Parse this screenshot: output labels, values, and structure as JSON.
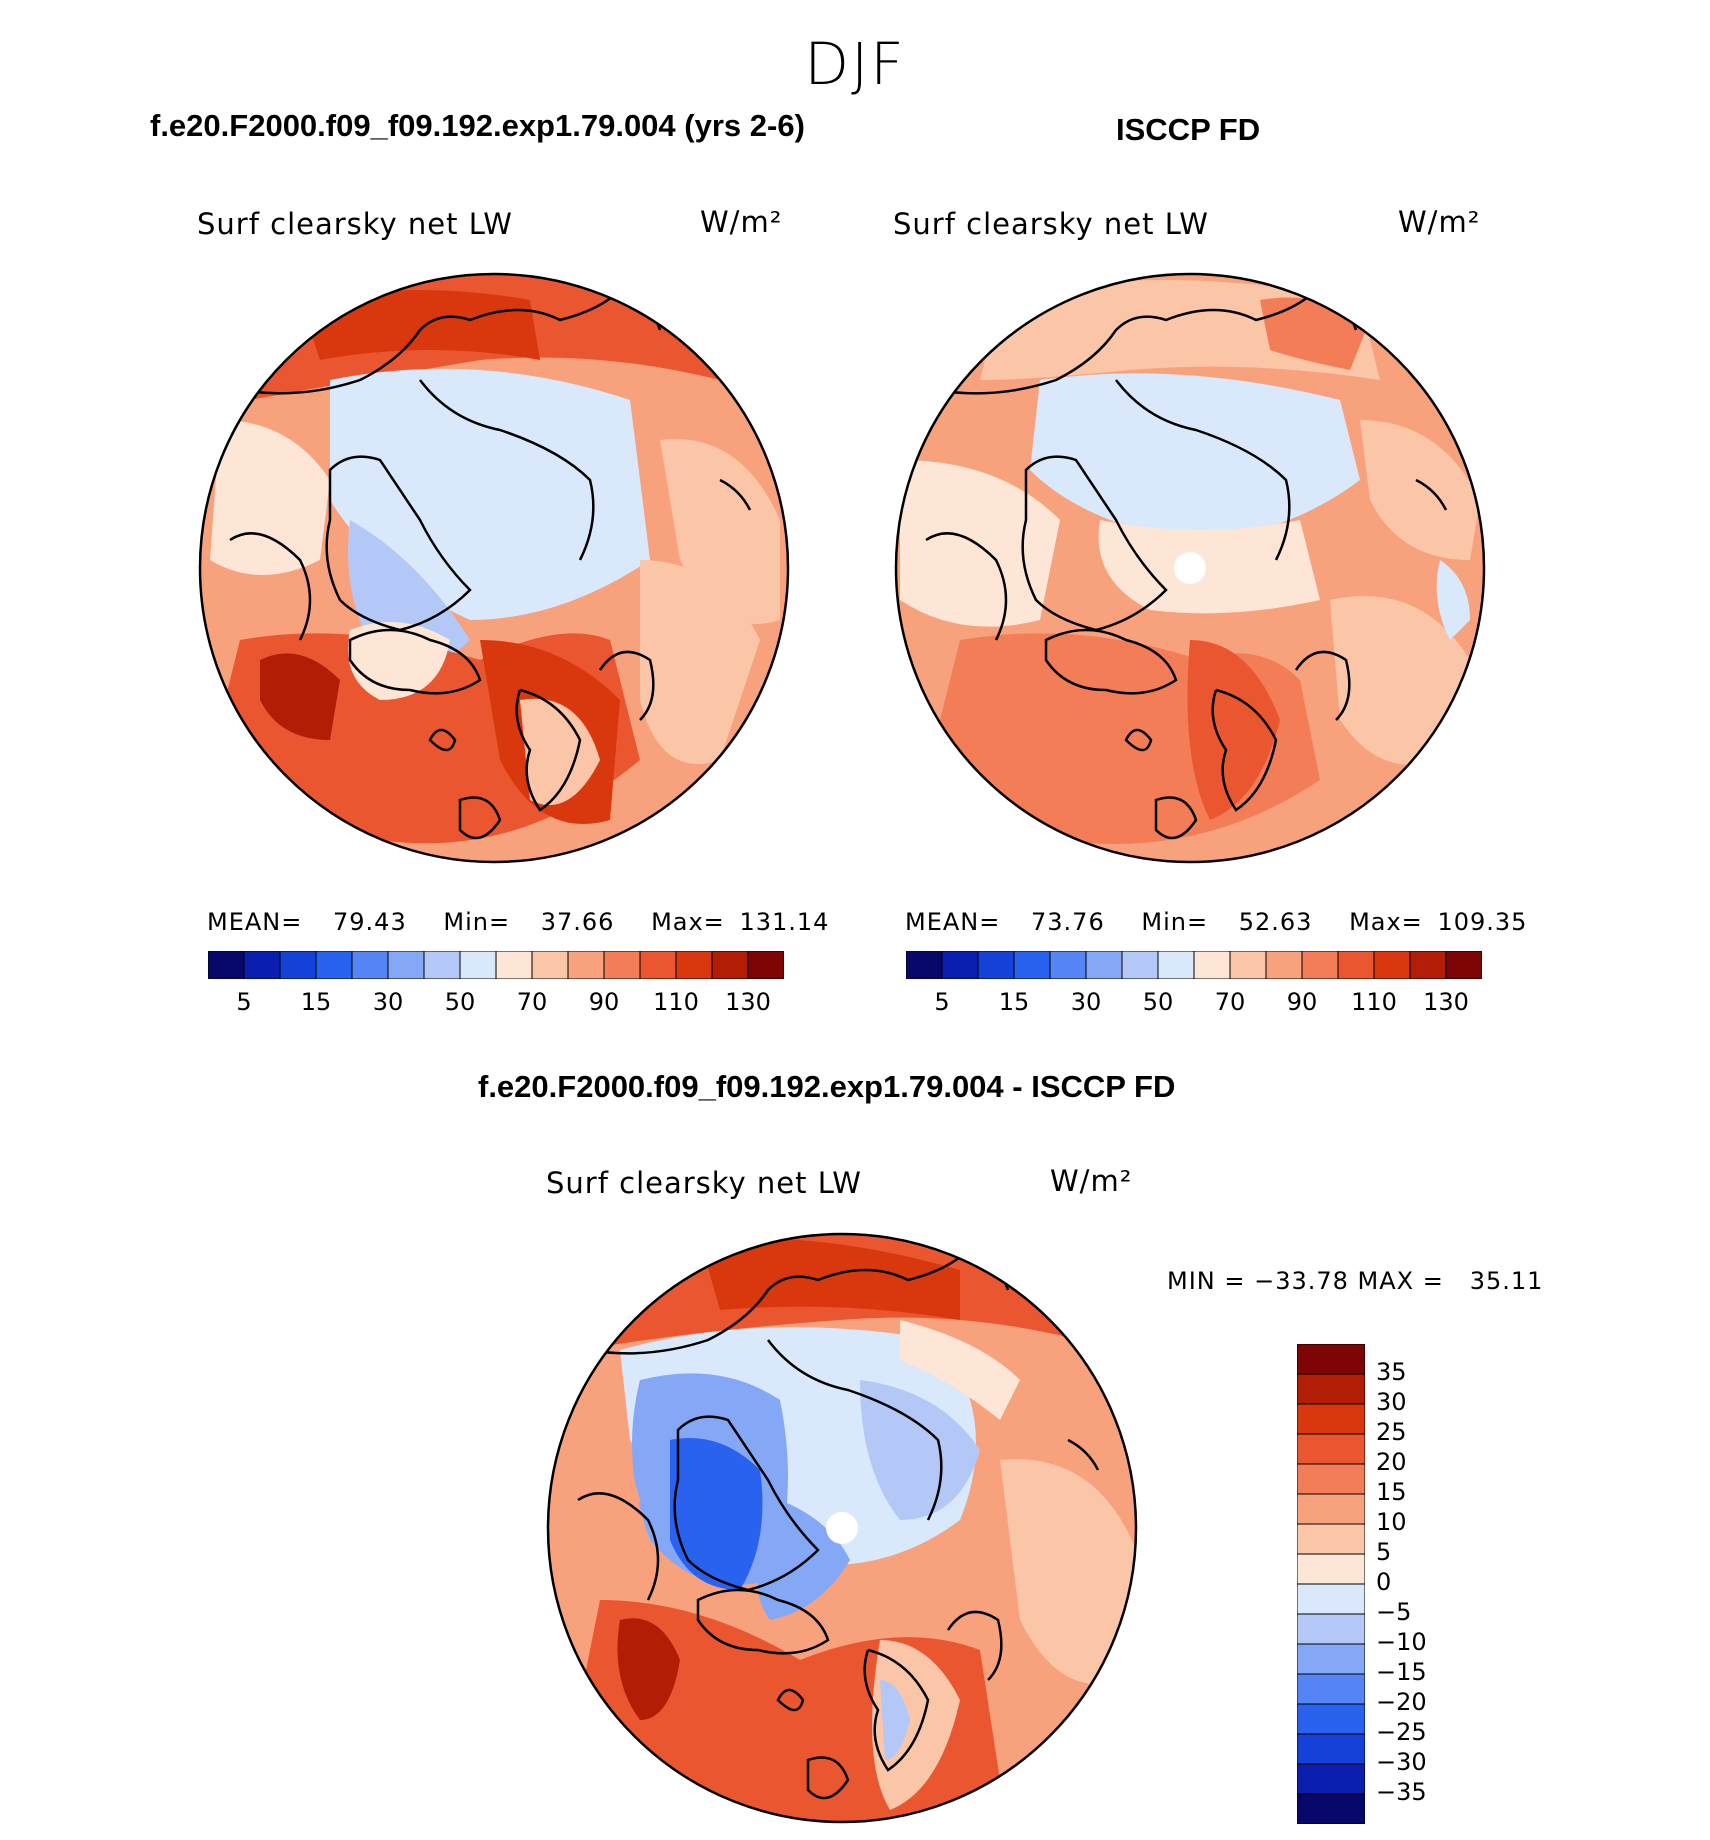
{
  "season": "DJF",
  "chart_data": [
    {
      "type": "heatmap",
      "projection": "north-polar-stereographic",
      "case_title": "f.e20.F2000.f09_f09.192.exp1.79.004 (yrs 2-6)",
      "title": "Surf clearsky net LW",
      "units": "W/m²",
      "stats": {
        "mean_label": "MEAN=",
        "mean": "79.43",
        "min_label": "Min=",
        "min": "37.66",
        "max_label": "Max=",
        "max": "131.14"
      },
      "colorbar_levels": [
        5,
        10,
        15,
        20,
        30,
        40,
        50,
        60,
        70,
        80,
        90,
        100,
        110,
        120,
        130
      ],
      "colorbar_tick_labels": [
        "5",
        "15",
        "30",
        "50",
        "70",
        "90",
        "110",
        "130"
      ]
    },
    {
      "type": "heatmap",
      "projection": "north-polar-stereographic",
      "case_title": "ISCCP FD",
      "title": "Surf clearsky net LW",
      "units": "W/m²",
      "stats": {
        "mean_label": "MEAN=",
        "mean": "73.76",
        "min_label": "Min=",
        "min": "52.63",
        "max_label": "Max=",
        "max": "109.35"
      },
      "colorbar_levels": [
        5,
        10,
        15,
        20,
        30,
        40,
        50,
        60,
        70,
        80,
        90,
        100,
        110,
        120,
        130
      ],
      "colorbar_tick_labels": [
        "5",
        "15",
        "30",
        "50",
        "70",
        "90",
        "110",
        "130"
      ]
    },
    {
      "type": "heatmap",
      "projection": "north-polar-stereographic",
      "case_title": "f.e20.F2000.f09_f09.192.exp1.79.004 - ISCCP FD",
      "title": "Surf clearsky net LW",
      "units": "W/m²",
      "stats": {
        "text": "MIN = −33.78 MAX =   35.11",
        "min": -33.78,
        "max": 35.11
      },
      "colorbar_levels": [
        35,
        30,
        25,
        20,
        15,
        10,
        5,
        0,
        -5,
        -10,
        -15,
        -20,
        -25,
        -30,
        -35
      ],
      "colorbar_tick_labels": [
        "35",
        "30",
        "25",
        "20",
        "15",
        "10",
        "5",
        "0",
        "−5",
        "−10",
        "−15",
        "−20",
        "−25",
        "−30",
        "−35"
      ]
    }
  ],
  "colors": {
    "palette16": [
      "#08086b",
      "#0a1fb0",
      "#1442d8",
      "#2a62f0",
      "#5585f5",
      "#84a8f6",
      "#b3c8f7",
      "#d9e9fb",
      "#fde6d6",
      "#fbc5a8",
      "#f8a27d",
      "#f27d57",
      "#ea5630",
      "#d9380f",
      "#b21d06",
      "#7d0505"
    ]
  }
}
